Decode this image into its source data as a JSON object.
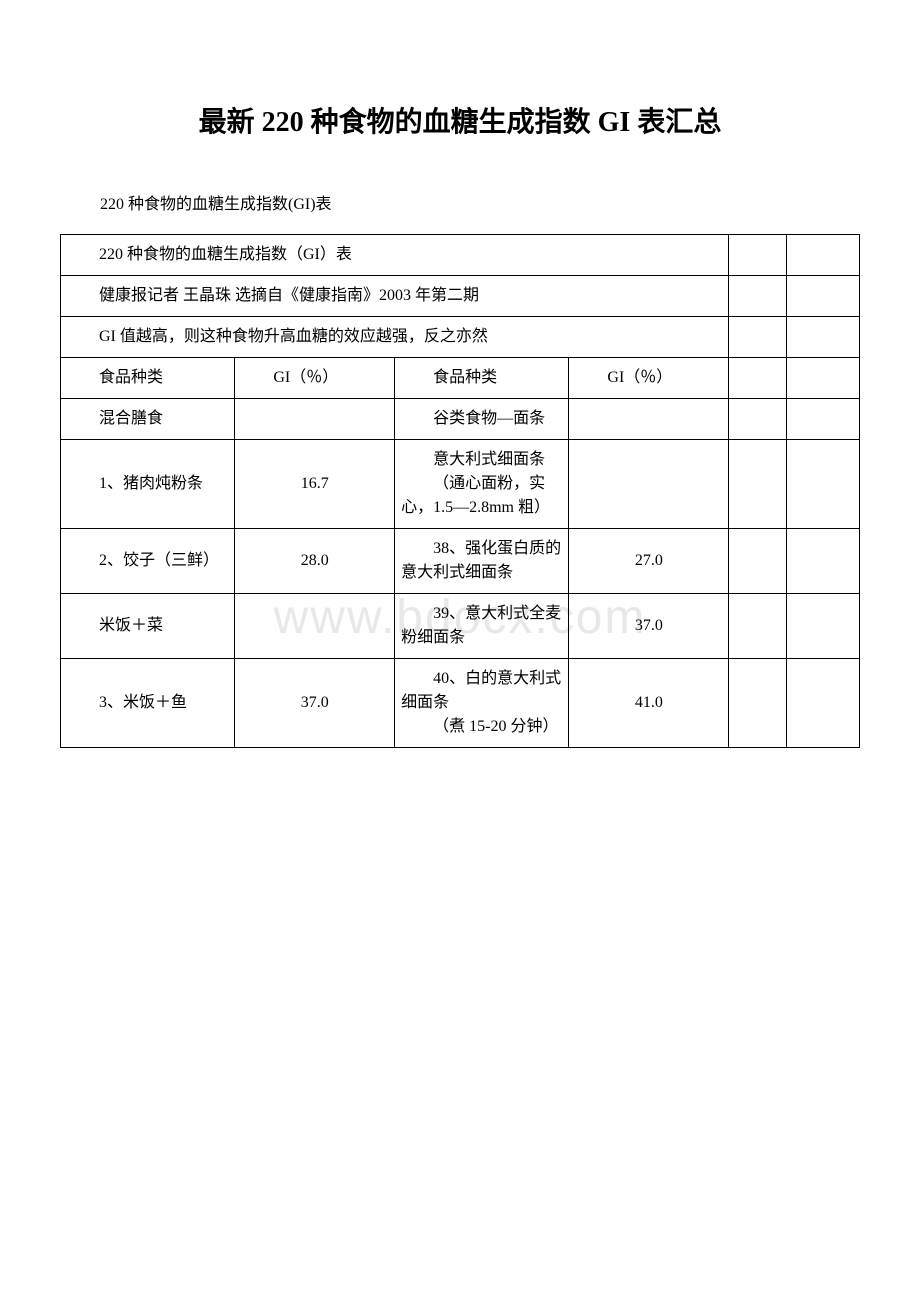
{
  "title": "最新 220 种食物的血糖生成指数 GI 表汇总",
  "subtitle": "220 种食物的血糖生成指数(GI)表",
  "watermark": "www.bdocx.com",
  "table": {
    "row1": "220 种食物的血糖生成指数（GI）表",
    "row2": "健康报记者 王晶珠 选摘自《健康指南》2003 年第二期",
    "row3": "GI 值越高，则这种食物升高血糖的效应越强，反之亦然",
    "headers": {
      "col1": "食品种类",
      "col2": "GI（％）",
      "col3": "食品种类",
      "col4": "GI（％）"
    },
    "rows": [
      {
        "c1": "混合膳食",
        "c2": "",
        "c3": "谷类食物—面条",
        "c4": ""
      },
      {
        "c1": "1、猪肉炖粉条",
        "c2": "16.7",
        "c3": "意大利式细面条\n　　（通心面粉，实心，1.5—2.8mm 粗）",
        "c4": ""
      },
      {
        "c1": "2、饺子（三鲜）",
        "c2": "28.0",
        "c3": "38、强化蛋白质的意大利式细面条",
        "c4": "27.0"
      },
      {
        "c1": "米饭＋菜",
        "c2": "",
        "c3": "39、意大利式全麦粉细面条",
        "c4": "37.0"
      },
      {
        "c1": "3、米饭＋鱼",
        "c2": "37.0",
        "c3": "40、白的意大利式细面条\n　　（煮 15-20 分钟）",
        "c4": "41.0"
      }
    ]
  },
  "styling": {
    "title_fontsize": 28,
    "body_fontsize": 16,
    "border_color": "#000000",
    "background_color": "#ffffff",
    "watermark_color": "#e8e8e8",
    "font_family": "SimSun"
  }
}
